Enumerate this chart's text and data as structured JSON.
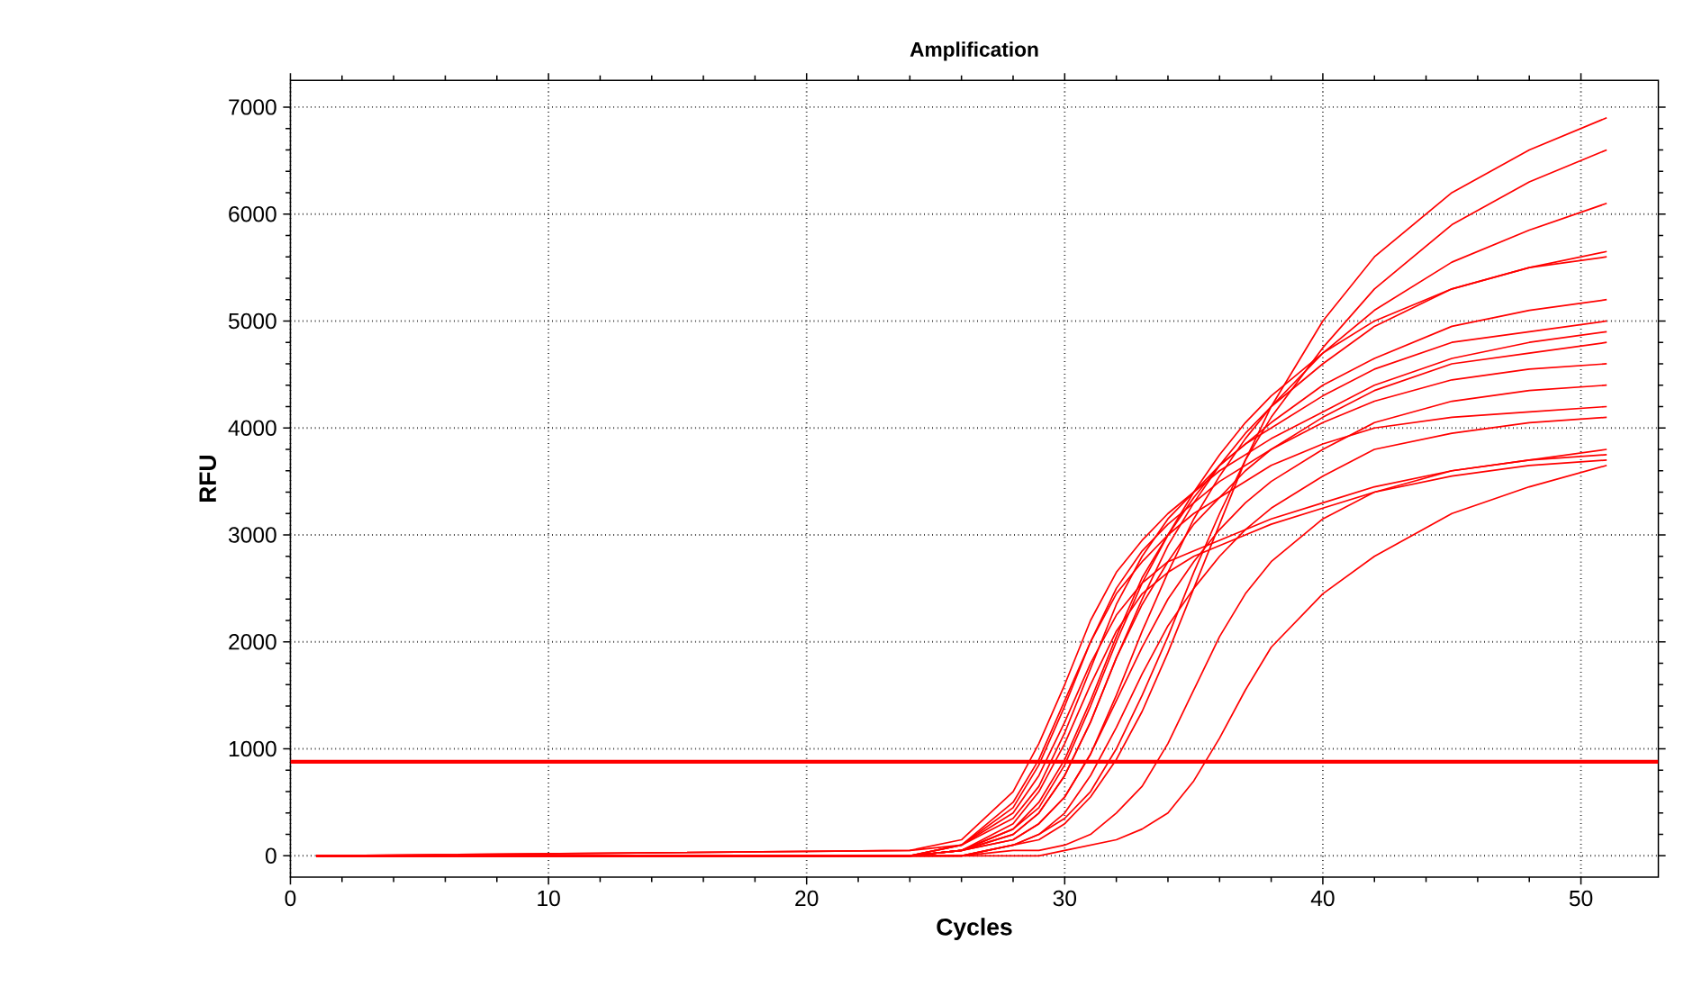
{
  "chart_data": {
    "type": "line",
    "title": "Amplification",
    "xlabel": "Cycles",
    "ylabel": "RFU",
    "x": [
      1,
      24,
      26,
      28,
      29,
      30,
      31,
      32,
      33,
      34,
      35,
      36,
      37,
      38,
      40,
      42,
      45,
      48,
      51
    ],
    "xlim": [
      0,
      53
    ],
    "ylim": [
      -200,
      7250
    ],
    "xticks": [
      0,
      10,
      20,
      30,
      40,
      50
    ],
    "yticks": [
      0,
      1000,
      2000,
      3000,
      4000,
      5000,
      6000,
      7000
    ],
    "grid": true,
    "ref_lines": [
      {
        "axis": "y",
        "value": 880,
        "color": "#ff0000"
      }
    ],
    "series": [
      {
        "color": "#ff0000",
        "values": [
          0,
          0,
          0,
          100,
          150,
          300,
          550,
          900,
          1350,
          1900,
          2500,
          3100,
          3700,
          4200,
          5000,
          5600,
          6200,
          6600,
          6900
        ]
      },
      {
        "color": "#ff0000",
        "values": [
          0,
          0,
          0,
          100,
          200,
          350,
          600,
          1000,
          1500,
          2050,
          2650,
          3200,
          3700,
          4100,
          4750,
          5300,
          5900,
          6300,
          6600
        ]
      },
      {
        "color": "#ff0000",
        "values": [
          0,
          0,
          50,
          150,
          300,
          550,
          950,
          1500,
          2100,
          2650,
          3150,
          3550,
          3900,
          4200,
          4700,
          5100,
          5550,
          5850,
          6100
        ]
      },
      {
        "color": "#ff0000",
        "values": [
          0,
          0,
          50,
          200,
          400,
          750,
          1250,
          1850,
          2400,
          2900,
          3300,
          3650,
          3950,
          4200,
          4600,
          4950,
          5300,
          5500,
          5650
        ]
      },
      {
        "color": "#ff0000",
        "values": [
          0,
          0,
          50,
          250,
          450,
          850,
          1400,
          2000,
          2550,
          3000,
          3400,
          3750,
          4050,
          4300,
          4700,
          5000,
          5300,
          5500,
          5600
        ]
      },
      {
        "color": "#ff0000",
        "values": [
          0,
          0,
          50,
          250,
          500,
          900,
          1450,
          2050,
          2600,
          3000,
          3350,
          3650,
          3850,
          4050,
          4400,
          4650,
          4950,
          5100,
          5200
        ]
      },
      {
        "color": "#ff0000",
        "values": [
          0,
          0,
          100,
          350,
          650,
          1150,
          1750,
          2350,
          2800,
          3150,
          3400,
          3650,
          3850,
          4000,
          4300,
          4550,
          4800,
          4900,
          5000
        ]
      },
      {
        "color": "#ff0000",
        "values": [
          0,
          50,
          150,
          600,
          1050,
          1600,
          2200,
          2650,
          2950,
          3200,
          3400,
          3600,
          3750,
          3900,
          4150,
          4400,
          4650,
          4800,
          4900
        ]
      },
      {
        "color": "#ff0000",
        "values": [
          0,
          0,
          50,
          200,
          400,
          750,
          1250,
          1850,
          2350,
          2750,
          3100,
          3350,
          3600,
          3800,
          4100,
          4350,
          4600,
          4700,
          4800
        ]
      },
      {
        "color": "#ff0000",
        "values": [
          0,
          0,
          100,
          450,
          850,
          1400,
          2000,
          2500,
          2850,
          3100,
          3300,
          3500,
          3650,
          3800,
          4050,
          4250,
          4450,
          4550,
          4600
        ]
      },
      {
        "color": "#ff0000",
        "values": [
          0,
          0,
          50,
          150,
          300,
          550,
          950,
          1450,
          1950,
          2400,
          2750,
          3050,
          3300,
          3500,
          3800,
          4050,
          4250,
          4350,
          4400
        ]
      },
      {
        "color": "#ff0000",
        "values": [
          0,
          50,
          100,
          500,
          900,
          1450,
          2000,
          2450,
          2750,
          3000,
          3200,
          3350,
          3500,
          3650,
          3850,
          4000,
          4100,
          4150,
          4200
        ]
      },
      {
        "color": "#ff0000",
        "values": [
          0,
          0,
          0,
          100,
          200,
          400,
          750,
          1200,
          1700,
          2150,
          2500,
          2800,
          3050,
          3250,
          3550,
          3800,
          3950,
          4050,
          4100
        ]
      },
      {
        "color": "#ff0000",
        "values": [
          0,
          0,
          100,
          400,
          750,
          1250,
          1800,
          2250,
          2550,
          2750,
          2850,
          2950,
          3050,
          3150,
          3300,
          3450,
          3600,
          3700,
          3800
        ]
      },
      {
        "color": "#ff0000",
        "values": [
          0,
          0,
          50,
          300,
          600,
          1050,
          1600,
          2100,
          2450,
          2650,
          2800,
          2900,
          3000,
          3100,
          3250,
          3400,
          3550,
          3650,
          3700
        ]
      },
      {
        "color": "#ff0000",
        "values": [
          0,
          0,
          0,
          50,
          50,
          100,
          200,
          400,
          650,
          1050,
          1550,
          2050,
          2450,
          2750,
          3150,
          3400,
          3600,
          3700,
          3750
        ]
      },
      {
        "color": "#ff0000",
        "values": [
          0,
          0,
          0,
          0,
          0,
          50,
          100,
          150,
          250,
          400,
          700,
          1100,
          1550,
          1950,
          2450,
          2800,
          3200,
          3450,
          3650
        ]
      }
    ]
  }
}
